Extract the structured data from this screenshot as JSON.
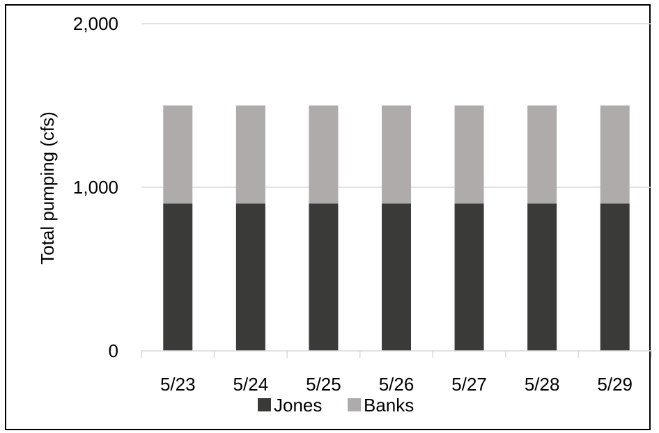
{
  "chart_data": {
    "type": "bar",
    "stacked": true,
    "categories": [
      "5/23",
      "5/24",
      "5/25",
      "5/26",
      "5/27",
      "5/28",
      "5/29"
    ],
    "series": [
      {
        "name": "Jones",
        "values": [
          900,
          900,
          900,
          900,
          900,
          900,
          900
        ],
        "color": "#3a3a38"
      },
      {
        "name": "Banks",
        "values": [
          600,
          600,
          600,
          600,
          600,
          600,
          600
        ],
        "color": "#afabab"
      }
    ],
    "ylabel": "Total pumping (cfs)",
    "xlabel": "",
    "ylim": [
      0,
      2000
    ],
    "yticks": [
      0,
      1000,
      2000
    ],
    "ytick_labels": [
      "0",
      "1,000",
      "2,000"
    ],
    "grid": true,
    "legend_position": "bottom"
  }
}
